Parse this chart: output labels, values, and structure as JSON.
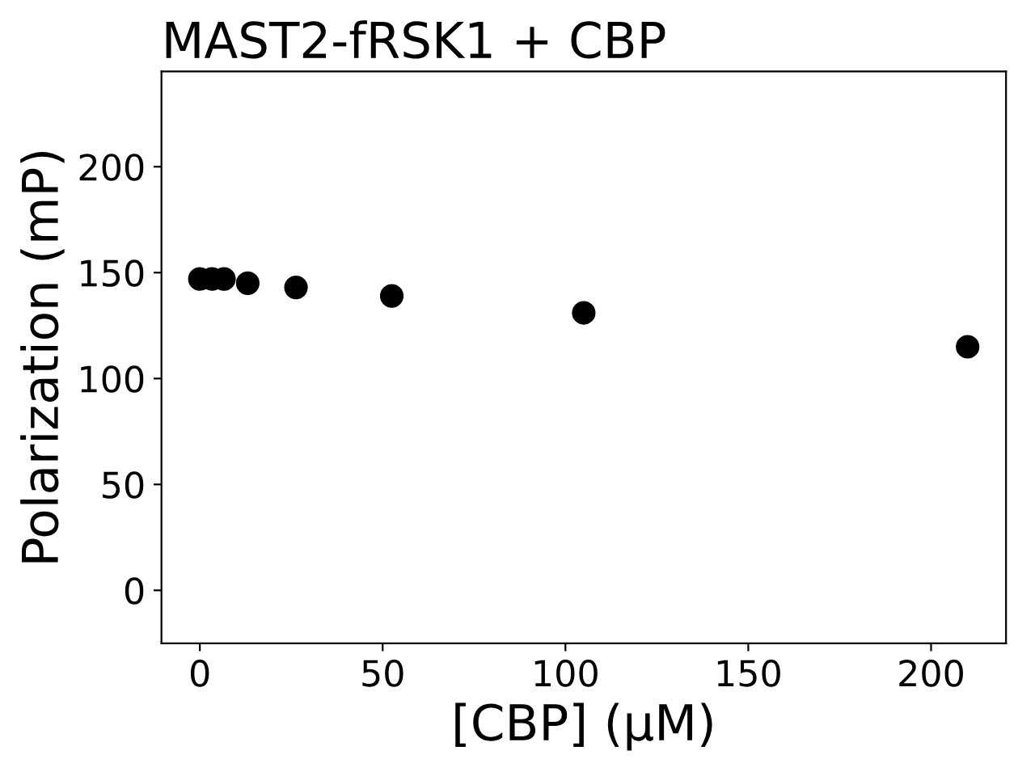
{
  "chart_data": {
    "type": "scatter",
    "title": "MAST2-fRSK1 + CBP",
    "xlabel": "[CBP] (μM)",
    "ylabel": "Polarization (mP)",
    "x": [
      0,
      3.3,
      6.6,
      13.1,
      26.3,
      52.5,
      105,
      210
    ],
    "series": [
      {
        "color": "#000000",
        "values": [
          147,
          147,
          147,
          145,
          143,
          139,
          131,
          115
        ]
      }
    ],
    "xlim": [
      -10.5,
      220.5
    ],
    "xticks": [
      0,
      50,
      100,
      150,
      200
    ],
    "ylim": [
      -25,
      245
    ],
    "yticks": [
      0,
      50,
      100,
      150,
      200
    ],
    "marker": "circle",
    "grid": false
  }
}
